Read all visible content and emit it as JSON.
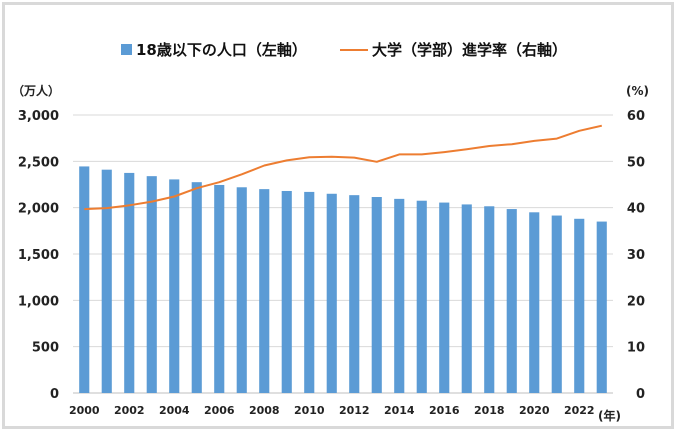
{
  "chart_data": {
    "type": "bar+line",
    "title": "",
    "x": [
      2000,
      2001,
      2002,
      2003,
      2004,
      2005,
      2006,
      2007,
      2008,
      2009,
      2010,
      2011,
      2012,
      2013,
      2014,
      2015,
      2016,
      2017,
      2018,
      2019,
      2020,
      2021,
      2022,
      2023
    ],
    "x_tick_labels": [
      "2000",
      "2002",
      "2004",
      "2006",
      "2008",
      "2010",
      "2012",
      "2014",
      "2016",
      "2018",
      "2020",
      "2022"
    ],
    "x_unit": "(年)",
    "left_axis": {
      "unit": "（万人）",
      "ylim": [
        0,
        3000
      ],
      "ticks": [
        "0",
        "500",
        "1,000",
        "1,500",
        "2,000",
        "2,500",
        "3,000"
      ]
    },
    "right_axis": {
      "unit": "(%)",
      "ylim": [
        0,
        60
      ],
      "ticks": [
        "0",
        "10",
        "20",
        "30",
        "40",
        "50",
        "60"
      ]
    },
    "grid": true,
    "legend_position": "top",
    "series": [
      {
        "name": "18歳以下の人口（左軸）",
        "kind": "bar",
        "axis": "left",
        "color": "#5b9bd5",
        "values": [
          2445,
          2410,
          2375,
          2340,
          2305,
          2275,
          2245,
          2220,
          2200,
          2180,
          2170,
          2150,
          2135,
          2115,
          2095,
          2075,
          2055,
          2035,
          2015,
          1985,
          1950,
          1915,
          1880,
          1850
        ]
      },
      {
        "name": "大学（学部）進学率（右軸）",
        "kind": "line",
        "axis": "right",
        "color": "#ed7d31",
        "values": [
          39.7,
          39.9,
          40.5,
          41.3,
          42.4,
          44.2,
          45.5,
          47.2,
          49.1,
          50.2,
          50.9,
          51.0,
          50.8,
          49.9,
          51.5,
          51.5,
          52.0,
          52.6,
          53.3,
          53.7,
          54.4,
          54.9,
          56.6,
          57.7
        ]
      }
    ]
  }
}
